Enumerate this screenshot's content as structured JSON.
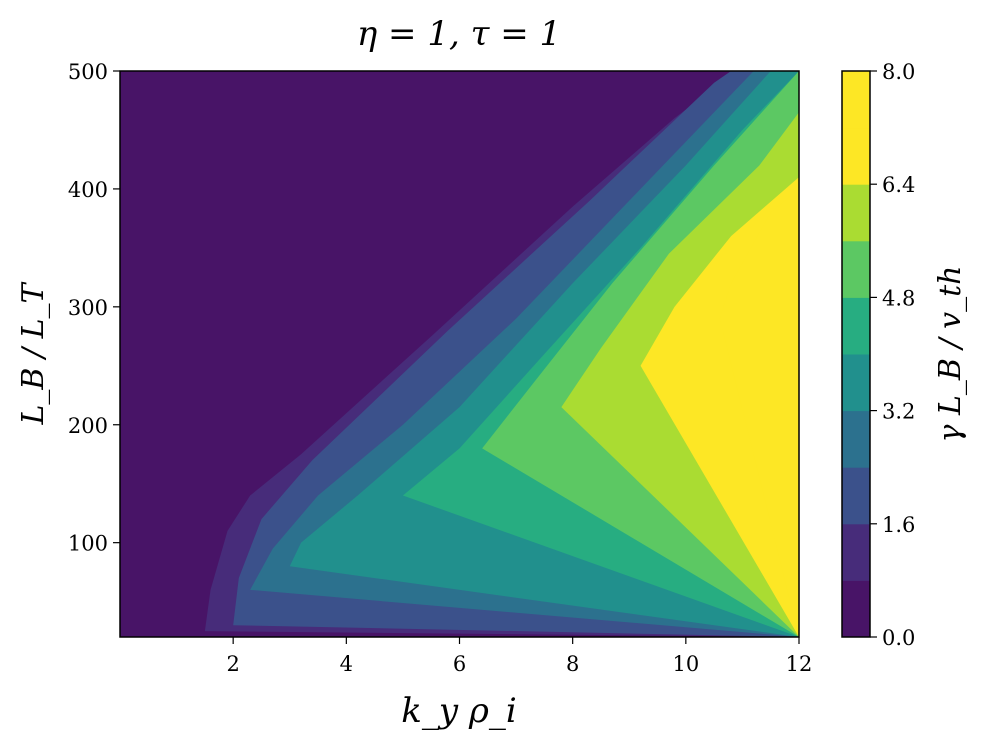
{
  "chart_data": {
    "type": "contour",
    "title": "η = 1, τ = 1",
    "xlabel": "k_y ρ_i",
    "ylabel": "L_B / L_T",
    "colorbar_label": "γ L_B / v_th",
    "xlim": [
      0,
      12
    ],
    "ylim": [
      20,
      500
    ],
    "x_ticks": [
      2,
      4,
      6,
      8,
      10,
      12
    ],
    "y_ticks": [
      100,
      200,
      300,
      400,
      500
    ],
    "colorbar_ticks": [
      "0.0",
      "1.6",
      "3.2",
      "4.8",
      "6.4",
      "8.0"
    ],
    "colorbar_range": [
      0,
      8
    ],
    "levels": [
      0,
      0.8,
      1.6,
      2.4,
      3.2,
      4.0,
      4.8,
      5.6,
      6.4,
      7.2,
      8.0
    ],
    "colormap": "viridis",
    "level_colors": [
      "#481467",
      "#472c7a",
      "#3b518b",
      "#2c718e",
      "#21908d",
      "#27ad81",
      "#5cc863",
      "#aadc32",
      "#fde725",
      "#fde725"
    ],
    "contour_boundaries": [
      {
        "level": 0.8,
        "points": [
          [
            1.5,
            25
          ],
          [
            1.6,
            60
          ],
          [
            1.9,
            110
          ],
          [
            2.3,
            140
          ],
          [
            3.2,
            175
          ],
          [
            5.5,
            275
          ],
          [
            8.0,
            385
          ],
          [
            9.8,
            460
          ],
          [
            10.9,
            500
          ]
        ]
      },
      {
        "level": 1.6,
        "points": [
          [
            2.0,
            30
          ],
          [
            2.1,
            70
          ],
          [
            2.5,
            120
          ],
          [
            3.4,
            170
          ],
          [
            5.8,
            280
          ],
          [
            8.3,
            390
          ],
          [
            10.5,
            490
          ],
          [
            10.8,
            500
          ]
        ]
      },
      {
        "level": 2.4,
        "points": [
          [
            2.3,
            60
          ],
          [
            2.7,
            95
          ],
          [
            3.5,
            140
          ],
          [
            5.0,
            200
          ],
          [
            7.0,
            290
          ],
          [
            9.2,
            400
          ],
          [
            11.2,
            500
          ]
        ]
      },
      {
        "level": 3.2,
        "points": [
          [
            3.0,
            80
          ],
          [
            3.2,
            100
          ],
          [
            4.2,
            140
          ],
          [
            6.0,
            215
          ],
          [
            8.0,
            320
          ],
          [
            10.0,
            420
          ],
          [
            11.5,
            500
          ]
        ]
      },
      {
        "level": 4.0,
        "points": [
          [
            5.0,
            140
          ],
          [
            6.0,
            180
          ],
          [
            7.5,
            260
          ],
          [
            9.2,
            350
          ],
          [
            11.0,
            450
          ],
          [
            12.0,
            500
          ]
        ]
      },
      {
        "level": 4.8,
        "points": [
          [
            6.4,
            180
          ],
          [
            7.3,
            235
          ],
          [
            8.7,
            320
          ],
          [
            10.5,
            420
          ],
          [
            12.0,
            500
          ]
        ]
      },
      {
        "level": 5.6,
        "points": [
          [
            7.8,
            215
          ],
          [
            8.5,
            265
          ],
          [
            9.7,
            345
          ],
          [
            11.3,
            420
          ],
          [
            12.0,
            465
          ]
        ]
      },
      {
        "level": 6.4,
        "points": [
          [
            9.2,
            250
          ],
          [
            9.8,
            300
          ],
          [
            10.8,
            360
          ],
          [
            12.0,
            410
          ]
        ]
      },
      {
        "level": 7.2,
        "points": [
          [
            10.6,
            290
          ],
          [
            10.8,
            320
          ],
          [
            11.5,
            380
          ],
          [
            12.0,
            400
          ]
        ]
      }
    ]
  }
}
